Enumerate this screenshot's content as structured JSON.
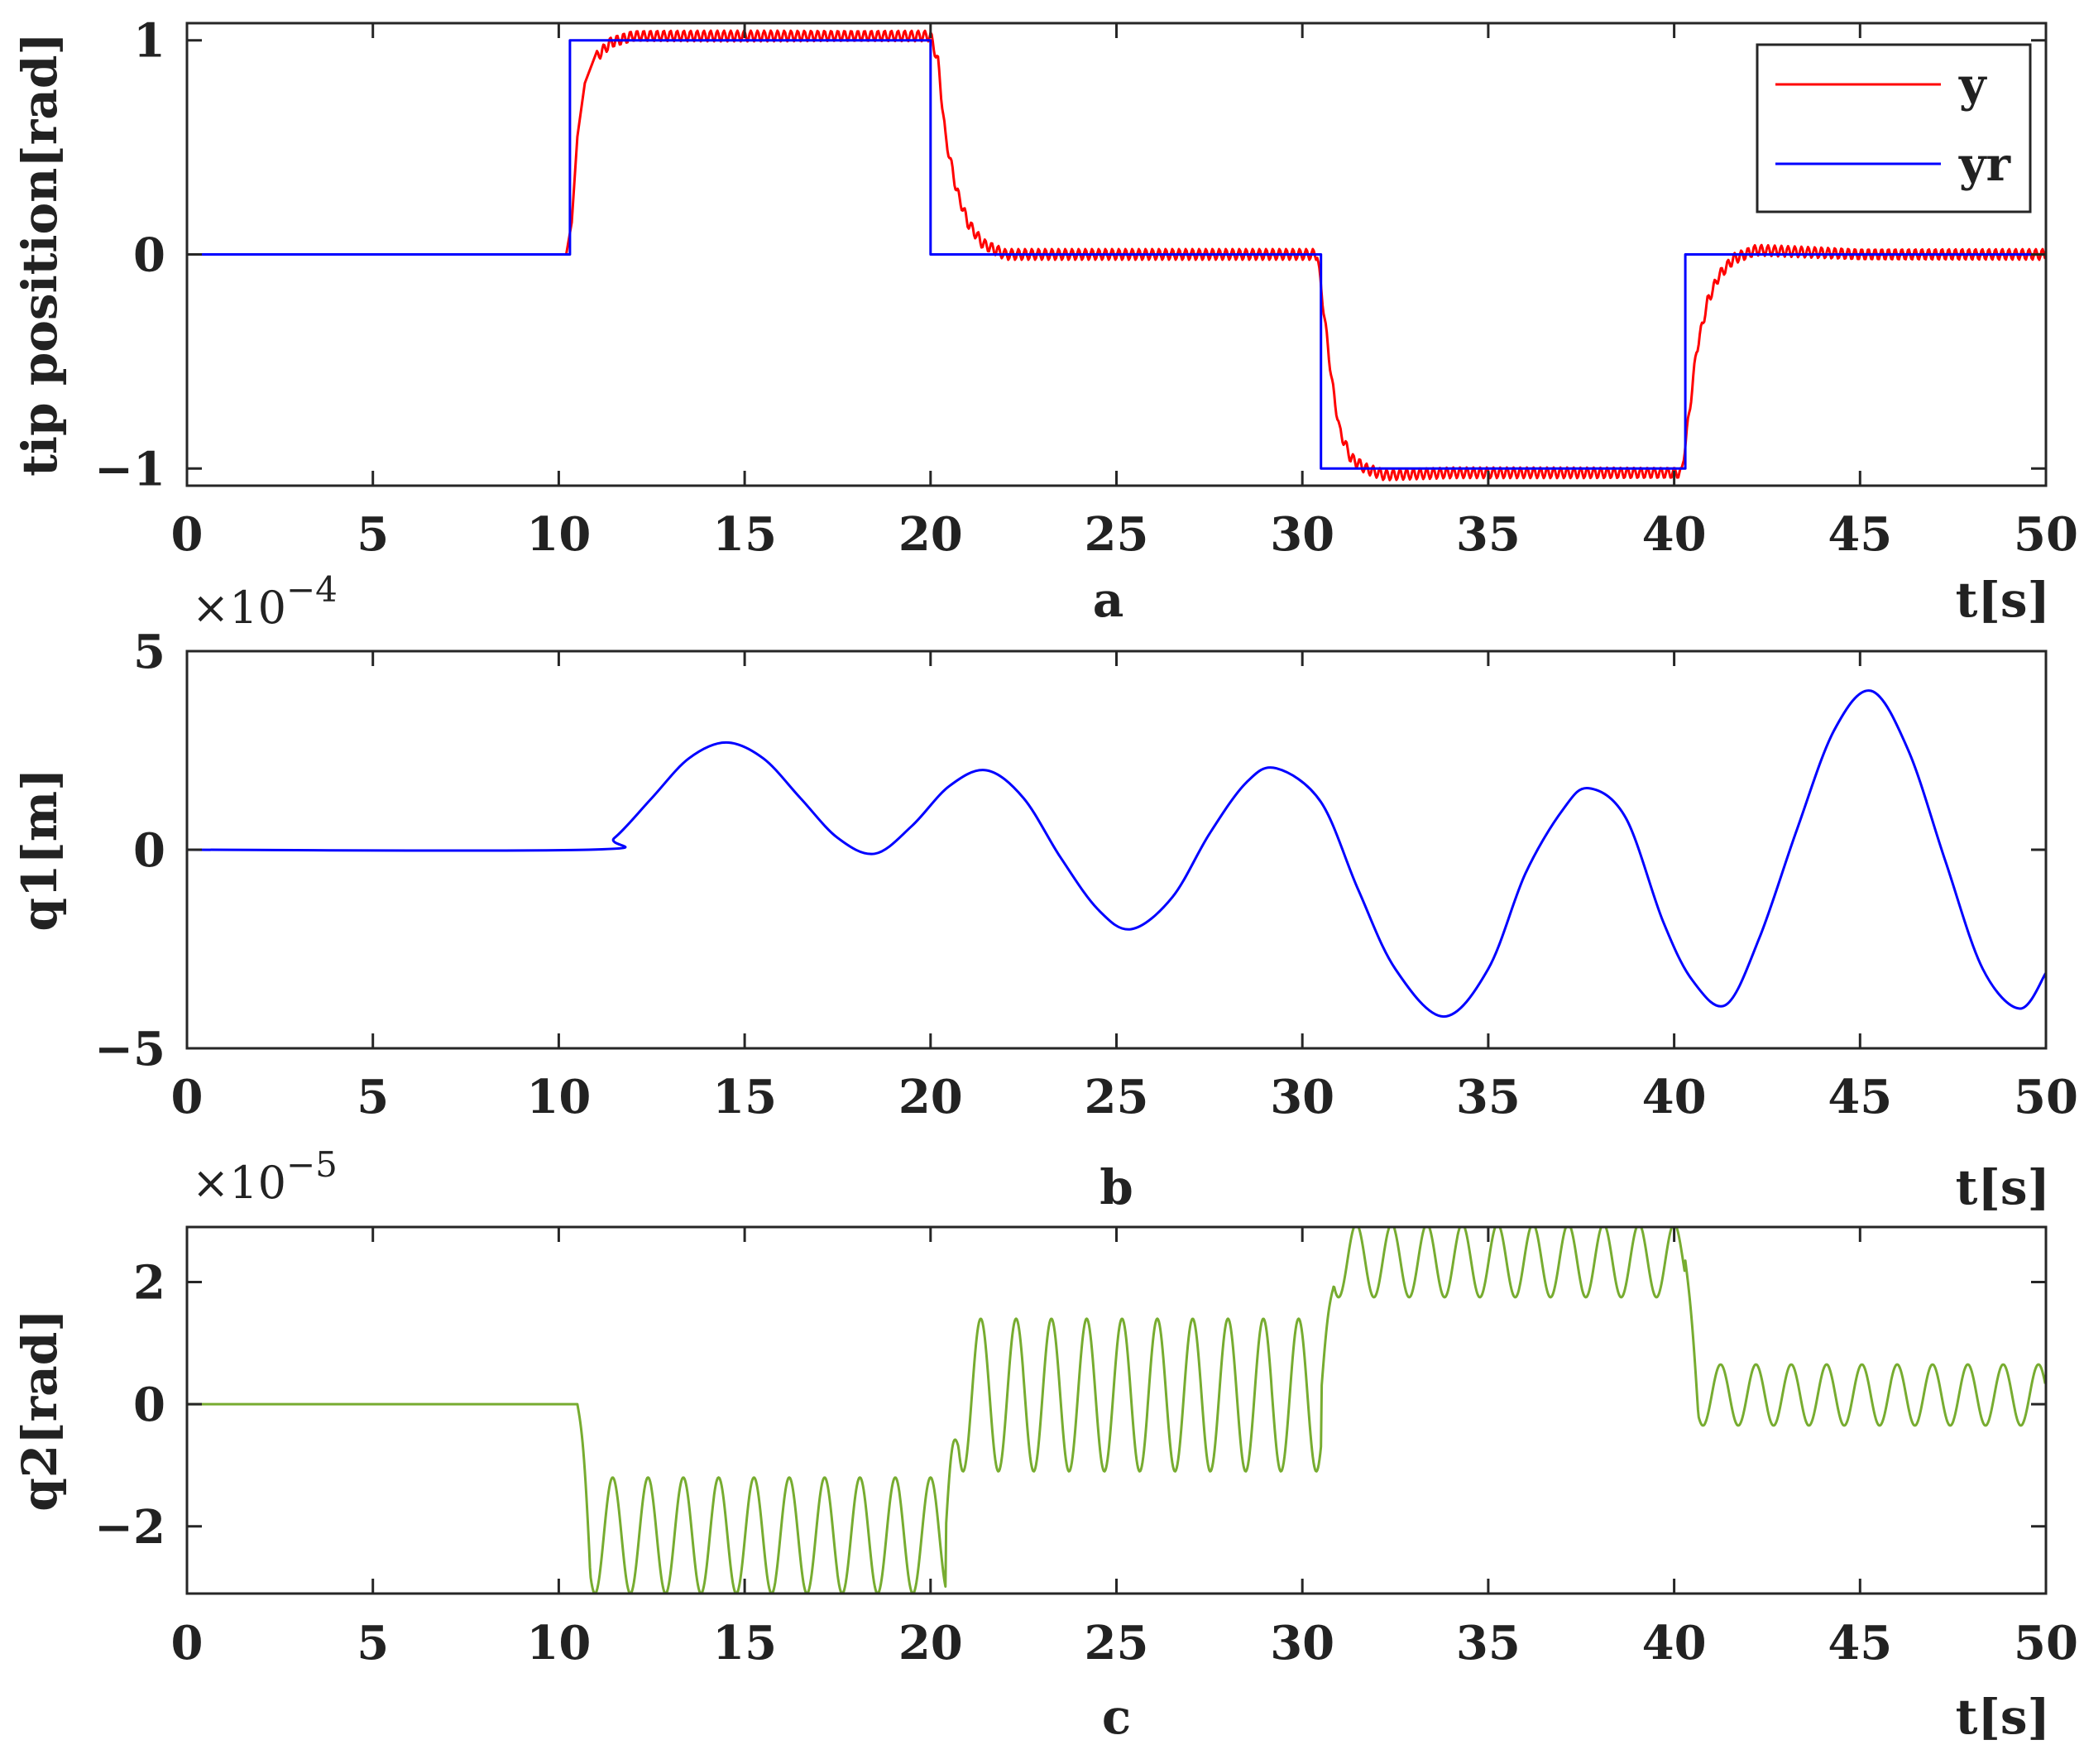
{
  "chart_data": [
    {
      "type": "line",
      "id": "a",
      "caption": "a",
      "xlabel": "t[s]",
      "ylabel": "tip position[rad]",
      "exponent": "",
      "xlim": [
        0,
        50
      ],
      "ylim": [
        -1.08,
        1.08
      ],
      "xticks": [
        0,
        5,
        10,
        15,
        20,
        25,
        30,
        35,
        40,
        45,
        50
      ],
      "yticks": [
        -1,
        0,
        1
      ],
      "ytick_labels": [
        "−1",
        "0",
        "1"
      ],
      "legend": {
        "placement": "top-right",
        "entries": [
          "y",
          "yr"
        ]
      },
      "series": [
        {
          "name": "y",
          "color": "#ff0000",
          "x": [
            0,
            10.2,
            10.35,
            10.5,
            10.7,
            11.0,
            11.4,
            12.0,
            14.0,
            16.0,
            18.0,
            20.0,
            20.2,
            20.4,
            20.7,
            21.0,
            21.4,
            22.0,
            25.0,
            28.0,
            30.4,
            30.6,
            30.8,
            31.0,
            31.3,
            31.7,
            32.2,
            34.0,
            37.0,
            40.2,
            40.4,
            40.6,
            40.9,
            41.2,
            41.6,
            42.2,
            45.0,
            50.0
          ],
          "y": [
            0,
            0,
            0.15,
            0.55,
            0.8,
            0.92,
            0.99,
            1.02,
            1.02,
            1.02,
            1.02,
            1.02,
            0.9,
            0.55,
            0.3,
            0.15,
            0.05,
            0.0,
            0.0,
            0.0,
            0.0,
            -0.3,
            -0.6,
            -0.82,
            -0.95,
            -1.0,
            -1.03,
            -1.02,
            -1.02,
            -1.02,
            -0.75,
            -0.45,
            -0.22,
            -0.1,
            -0.02,
            0.02,
            0.0,
            0.0
          ],
          "oscillation_amplitude": 0.025,
          "oscillation_period": 0.18,
          "oscillation_from": 11.0
        },
        {
          "name": "yr",
          "color": "#0000ff",
          "x": [
            0,
            10.3,
            10.3,
            20.0,
            20.0,
            30.5,
            30.5,
            40.3,
            40.3,
            50
          ],
          "y": [
            0,
            0,
            1,
            1,
            0,
            0,
            -1,
            -1,
            0,
            0
          ]
        }
      ]
    },
    {
      "type": "line",
      "id": "b",
      "caption": "b",
      "xlabel": "t[s]",
      "ylabel": "q1[m]",
      "exponent": "×10",
      "exponent_power": "−4",
      "xlim": [
        0,
        50
      ],
      "ylim": [
        -5,
        5
      ],
      "xticks": [
        0,
        5,
        10,
        15,
        20,
        25,
        30,
        35,
        40,
        45,
        50
      ],
      "yticks": [
        -5,
        0,
        5
      ],
      "ytick_labels": [
        "−5",
        "0",
        "5"
      ],
      "series": [
        {
          "name": "",
          "color": "#0000ff",
          "x": [
            0,
            10.8,
            11.5,
            12.5,
            13.5,
            14.5,
            15.5,
            16.5,
            17.5,
            18.5,
            19.5,
            20.5,
            21.5,
            22.5,
            23.5,
            24.5,
            25.4,
            26.5,
            27.5,
            28.5,
            29.3,
            30.5,
            31.5,
            32.5,
            33.8,
            35.0,
            36.0,
            37.0,
            37.7,
            38.7,
            39.7,
            40.5,
            41.4,
            42.3,
            43.3,
            44.3,
            45.3,
            46.3,
            47.3,
            48.3,
            49.3,
            50.0
          ],
          "y": [
            0,
            0,
            0.3,
            1.3,
            2.3,
            2.7,
            2.3,
            1.3,
            0.3,
            -0.1,
            0.6,
            1.6,
            2.0,
            1.3,
            -0.2,
            -1.5,
            -2.0,
            -1.2,
            0.4,
            1.7,
            2.05,
            1.2,
            -1.0,
            -3.0,
            -4.2,
            -3.0,
            -0.6,
            1.0,
            1.55,
            0.8,
            -1.8,
            -3.3,
            -3.9,
            -2.2,
            0.5,
            3.0,
            4.0,
            2.5,
            -0.3,
            -3.0,
            -4.0,
            -3.1
          ]
        }
      ]
    },
    {
      "type": "line",
      "id": "c",
      "caption": "c",
      "xlabel": "t[s]",
      "ylabel": "q2[rad]",
      "exponent": "×10",
      "exponent_power": "−5",
      "xlim": [
        0,
        50
      ],
      "ylim": [
        -3.1,
        2.9
      ],
      "xticks": [
        0,
        5,
        10,
        15,
        20,
        25,
        30,
        35,
        40,
        45,
        50
      ],
      "yticks": [
        -2,
        0,
        2
      ],
      "ytick_labels": [
        "−2",
        "0",
        "2"
      ],
      "series": [
        {
          "name": "",
          "color": "#77ac30",
          "segments": [
            {
              "t0": 0,
              "t1": 10.5,
              "center": 0,
              "amp": 0
            },
            {
              "t0": 10.5,
              "t1": 20.4,
              "center": -2.15,
              "amp": 0.95
            },
            {
              "t0": 20.4,
              "t1": 30.5,
              "center": 0.15,
              "amp": 1.25
            },
            {
              "t0": 30.5,
              "t1": 40.3,
              "center": 2.35,
              "amp": 0.6
            },
            {
              "t0": 40.3,
              "t1": 50,
              "center": 0.15,
              "amp": 0.5
            }
          ],
          "period": 0.95
        }
      ]
    }
  ]
}
